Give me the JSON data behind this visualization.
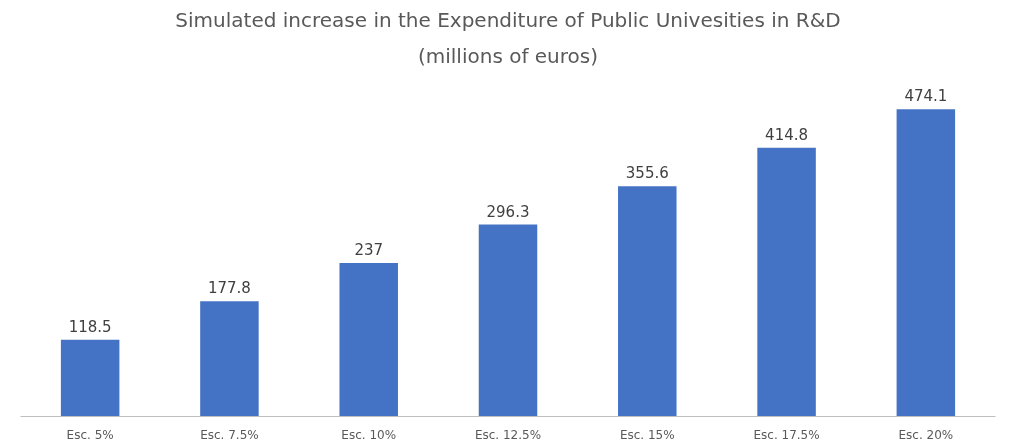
{
  "chart_data": {
    "type": "bar",
    "title": "Simulated increase in the Expenditure of Public Univesities in R&D",
    "subtitle": "(millions of euros)",
    "categories": [
      "Esc. 5%",
      "Esc. 7.5%",
      "Esc. 10%",
      "Esc. 12.5%",
      "Esc. 15%",
      "Esc. 17.5%",
      "Esc. 20%"
    ],
    "values": [
      118.5,
      177.8,
      237,
      296.3,
      355.6,
      414.8,
      474.1
    ],
    "color": "#4472c4",
    "data_labels": true,
    "grid": false
  }
}
